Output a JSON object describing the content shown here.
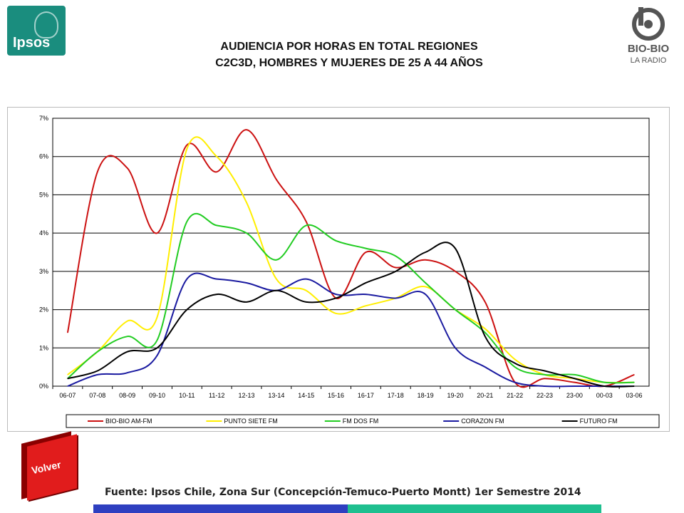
{
  "header": {
    "title_line1": "AUDIENCIA POR HORAS EN TOTAL REGIONES",
    "title_line2": "C2C3D, HOMBRES Y MUJERES DE 25 A 44 AÑOS",
    "left_logo": {
      "text": "Ipsos",
      "color": "#1a8d7e"
    },
    "right_logo": {
      "text": "BIO-BIO",
      "subtext": "LA RADIO",
      "color": "#555555"
    }
  },
  "nav": {
    "volver_label": "Volver",
    "volver_color": "#e11c1c"
  },
  "footer": {
    "source": "Fuente: Ipsos Chile, Zona Sur (Concepción-Temuco-Puerto Montt) 1er Semestre 2014",
    "bar_colors": [
      "#2e3fc0",
      "#1fbf8f"
    ]
  },
  "chart_data": {
    "type": "line",
    "categories": [
      "06-07",
      "07-08",
      "08-09",
      "09-10",
      "10-11",
      "11-12",
      "12-13",
      "13-14",
      "14-15",
      "15-16",
      "16-17",
      "17-18",
      "18-19",
      "19-20",
      "20-21",
      "21-22",
      "22-23",
      "23-00",
      "00-03",
      "03-06"
    ],
    "y_ticks": [
      "0%",
      "1%",
      "2%",
      "3%",
      "4%",
      "5%",
      "6%",
      "7%"
    ],
    "ylim": [
      0,
      7
    ],
    "grid": true,
    "legend_position": "bottom",
    "series": [
      {
        "name": "BIO-BIO AM-FM",
        "color": "#cc1111",
        "values": [
          1.4,
          5.6,
          5.7,
          4.0,
          6.3,
          5.6,
          6.7,
          5.4,
          4.3,
          2.3,
          3.5,
          3.1,
          3.3,
          3.0,
          2.2,
          0.1,
          0.2,
          0.1,
          0.0,
          0.3
        ]
      },
      {
        "name": "PUNTO SIETE FM",
        "color": "#ffee00",
        "values": [
          0.3,
          0.9,
          1.7,
          1.8,
          6.2,
          6.0,
          4.8,
          2.8,
          2.5,
          1.9,
          2.1,
          2.3,
          2.6,
          2.0,
          1.5,
          0.7,
          0.3,
          0.2,
          0.1,
          0.1
        ]
      },
      {
        "name": "FM DOS FM",
        "color": "#22cc22",
        "values": [
          0.2,
          0.9,
          1.3,
          1.2,
          4.3,
          4.2,
          4.0,
          3.3,
          4.2,
          3.8,
          3.6,
          3.4,
          2.7,
          2.0,
          1.4,
          0.5,
          0.3,
          0.3,
          0.1,
          0.1
        ]
      },
      {
        "name": "CORAZON FM",
        "color": "#1a1aa0",
        "values": [
          0.0,
          0.3,
          0.35,
          0.8,
          2.8,
          2.8,
          2.7,
          2.5,
          2.8,
          2.4,
          2.4,
          2.3,
          2.4,
          1.0,
          0.5,
          0.1,
          0.0,
          0.0,
          0.0,
          0.0
        ]
      },
      {
        "name": "FUTURO FM",
        "color": "#000000",
        "values": [
          0.2,
          0.4,
          0.9,
          1.0,
          2.0,
          2.4,
          2.2,
          2.5,
          2.2,
          2.3,
          2.7,
          3.0,
          3.5,
          3.6,
          1.3,
          0.6,
          0.4,
          0.2,
          0.0,
          0.0
        ]
      }
    ]
  }
}
